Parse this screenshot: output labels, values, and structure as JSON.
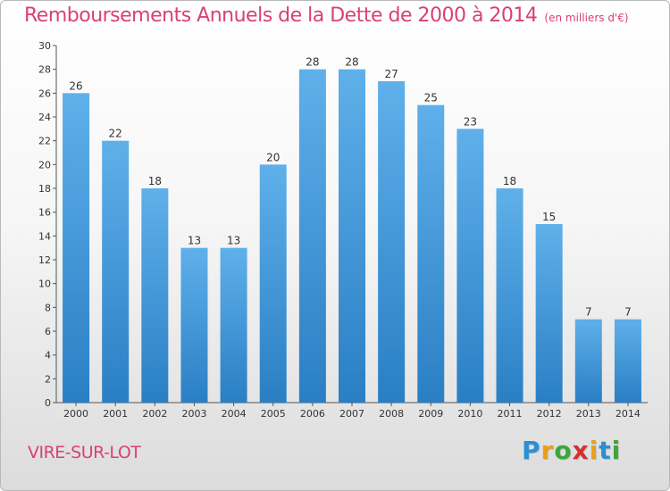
{
  "header": {
    "title": "Remboursements Annuels de la Dette de 2000 à 2014",
    "unit": "(en milliers d'€)"
  },
  "footer": {
    "commune": "VIRE-SUR-LOT",
    "brand_letters": [
      "P",
      "r",
      "o",
      "x",
      "i",
      "t",
      "i"
    ],
    "brand_colors": [
      "#2a8fd4",
      "#e8a01a",
      "#39a83a",
      "#d63030",
      "#e8a01a",
      "#2a8fd4",
      "#39a83a"
    ]
  },
  "colors": {
    "bar_light": "#5fb0ea",
    "bar_dark": "#2a7fc4",
    "accent": "#d8407a"
  },
  "chart_data": {
    "type": "bar",
    "title": "Remboursements Annuels de la Dette de 2000 à 2014",
    "subtitle": "(en milliers d'€)",
    "xlabel": "",
    "ylabel": "",
    "categories": [
      "2000",
      "2001",
      "2002",
      "2003",
      "2004",
      "2005",
      "2006",
      "2007",
      "2008",
      "2009",
      "2010",
      "2011",
      "2012",
      "2013",
      "2014"
    ],
    "values": [
      26,
      22,
      18,
      13,
      13,
      20,
      28,
      28,
      27,
      25,
      23,
      18,
      15,
      7,
      7
    ],
    "data_labels": [
      "26",
      "22",
      "18",
      "13",
      "13",
      "20",
      "28",
      "28",
      "27",
      "25",
      "23",
      "18",
      "15",
      "7",
      "7"
    ],
    "ylim": [
      0,
      30
    ],
    "yticks": [
      "0",
      "2",
      "4",
      "6",
      "8",
      "10",
      "12",
      "14",
      "16",
      "18",
      "20",
      "22",
      "24",
      "26",
      "28",
      "30"
    ],
    "grid": false,
    "legend": "none"
  }
}
